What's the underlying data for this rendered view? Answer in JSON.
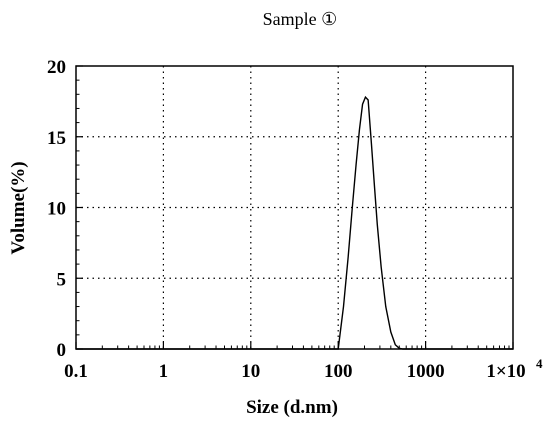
{
  "chart_data": {
    "type": "line",
    "title": "Sample ①",
    "xlabel": "Size (d.nm)",
    "ylabel": "Volume(%)",
    "x_scale": "log",
    "xlim": [
      0.1,
      10000
    ],
    "ylim": [
      0,
      20
    ],
    "grid": true,
    "x_tick_values": [
      0.1,
      1,
      10,
      100,
      1000,
      10000
    ],
    "x_tick_labels": [
      "0.1",
      "1",
      "10",
      "100",
      "1000",
      "1×10"
    ],
    "x_tick_exponent_label": "4",
    "y_tick_values": [
      0,
      5,
      10,
      15,
      20
    ],
    "y_tick_labels": [
      "0",
      "5",
      "10",
      "15",
      "20"
    ],
    "series": [
      {
        "x": [
          0.1,
          90,
          100,
          115,
          130,
          145,
          160,
          175,
          190,
          205,
          220,
          240,
          260,
          280,
          310,
          350,
          400,
          450,
          500,
          550,
          10000
        ],
        "y": [
          0,
          0,
          0,
          3.0,
          6.5,
          10.0,
          13.0,
          15.5,
          17.3,
          17.8,
          17.6,
          14.5,
          11.5,
          8.8,
          5.8,
          3.0,
          1.2,
          0.3,
          0.05,
          0,
          0
        ]
      }
    ]
  }
}
